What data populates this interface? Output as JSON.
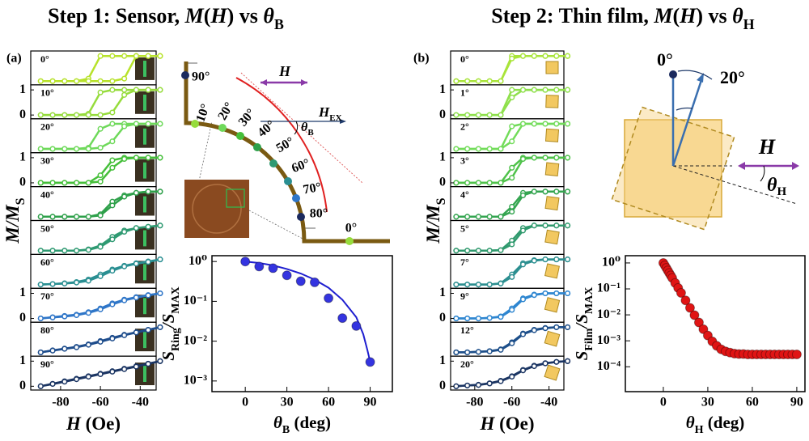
{
  "titles": [
    [
      "Step 1: Sensor, ",
      "M",
      "(",
      "H",
      ") vs ",
      "θ",
      "B"
    ],
    [
      "Step 2: Thin film, ",
      "M",
      "(",
      "H",
      ") vs ",
      "θ",
      "H"
    ]
  ],
  "diagram_a": {
    "angle_labels": [
      "90°",
      "10°",
      "20°",
      "30°",
      "40°",
      "50°",
      "60°",
      "70°",
      "80°",
      "0°"
    ],
    "field": "H",
    "field_ex": [
      "H",
      "EX"
    ],
    "theta": [
      "θ",
      "B"
    ]
  },
  "diagram_b": {
    "angle_labels": [
      "0°",
      "20°"
    ],
    "field": "H",
    "theta": [
      "θ",
      "H"
    ]
  },
  "chart_data": [
    {
      "type": "loops",
      "panel_label": "(a)",
      "ylabel": [
        "M",
        "/M",
        "S"
      ],
      "xlabel": [
        "H",
        " (Oe)"
      ],
      "x": [
        -90,
        -84,
        -78,
        -72,
        -66,
        -60,
        -54,
        -48,
        -42,
        -36,
        -30
      ],
      "xlim": [
        -95,
        -32
      ],
      "ylim": [
        -0.15,
        1.2
      ],
      "xticks": [
        -80,
        -60,
        -40
      ],
      "loops": [
        {
          "label": "0°",
          "color": "#b7e22a",
          "up": [
            0,
            0,
            0,
            0,
            0.1,
            1,
            1,
            1,
            1,
            1,
            1
          ],
          "down": [
            0,
            0,
            0,
            0,
            0,
            0,
            0,
            0.1,
            1,
            1,
            1
          ]
        },
        {
          "label": "10°",
          "color": "#96dc3c",
          "up": [
            0,
            0,
            0,
            0,
            0.05,
            0.9,
            1,
            1,
            1,
            1,
            1
          ],
          "down": [
            0,
            0,
            0,
            0,
            0,
            0,
            0.1,
            0.8,
            1,
            1,
            1
          ],
          "yticks": [
            0,
            1
          ]
        },
        {
          "label": "20°",
          "color": "#6ed95a",
          "up": [
            0,
            0,
            0,
            0,
            0.05,
            0.8,
            1,
            1,
            1,
            1,
            1
          ],
          "down": [
            0,
            0,
            0,
            0,
            0,
            0.05,
            0.3,
            0.9,
            1,
            1,
            1
          ]
        },
        {
          "label": "30°",
          "color": "#45bf3a",
          "up": [
            0,
            0,
            0,
            0,
            0,
            0.3,
            0.9,
            1,
            1,
            1,
            1
          ],
          "down": [
            0,
            0,
            0,
            0,
            0,
            0.05,
            0.6,
            0.95,
            1,
            1,
            1
          ],
          "yticks": [
            0,
            1
          ]
        },
        {
          "label": "40°",
          "color": "#2ea04a",
          "up": [
            0,
            0,
            0,
            0,
            0,
            0.1,
            0.6,
            0.85,
            0.95,
            1,
            1
          ],
          "down": [
            0,
            0,
            0,
            0,
            0,
            0.05,
            0.45,
            0.8,
            0.95,
            1,
            1
          ]
        },
        {
          "label": "50°",
          "color": "#2f9a72",
          "up": [
            0,
            0,
            0,
            0,
            0.05,
            0.2,
            0.55,
            0.8,
            0.9,
            0.95,
            1
          ],
          "down": [
            0,
            0,
            0,
            0,
            0.03,
            0.15,
            0.45,
            0.75,
            0.9,
            0.95,
            1
          ]
        },
        {
          "label": "60°",
          "color": "#2a8f92",
          "up": [
            0,
            0.02,
            0.05,
            0.1,
            0.2,
            0.4,
            0.6,
            0.75,
            0.85,
            0.92,
            1
          ],
          "down": [
            0,
            0.02,
            0.04,
            0.08,
            0.15,
            0.33,
            0.55,
            0.72,
            0.83,
            0.9,
            1
          ]
        },
        {
          "label": "70°",
          "color": "#2f76c8",
          "up": [
            0,
            0.05,
            0.1,
            0.15,
            0.25,
            0.4,
            0.6,
            0.75,
            0.85,
            0.93,
            1
          ],
          "down": [
            0,
            0.04,
            0.08,
            0.13,
            0.22,
            0.36,
            0.56,
            0.72,
            0.83,
            0.92,
            1
          ],
          "yticks": [
            0,
            1
          ]
        },
        {
          "label": "80°",
          "color": "#1e4d8c",
          "up": [
            0,
            0.08,
            0.15,
            0.22,
            0.32,
            0.45,
            0.58,
            0.7,
            0.8,
            0.9,
            1
          ],
          "down": [
            0,
            0.07,
            0.14,
            0.2,
            0.3,
            0.42,
            0.55,
            0.68,
            0.79,
            0.89,
            1
          ]
        },
        {
          "label": "90°",
          "color": "#1b3563",
          "up": [
            0,
            0.1,
            0.2,
            0.3,
            0.4,
            0.5,
            0.6,
            0.7,
            0.8,
            0.9,
            1
          ],
          "down": [
            0,
            0.09,
            0.18,
            0.28,
            0.38,
            0.48,
            0.58,
            0.68,
            0.78,
            0.89,
            1
          ],
          "yticks": [
            0,
            1
          ]
        }
      ]
    },
    {
      "type": "scatter",
      "log_y": true,
      "ylabel": [
        "S",
        "Ring",
        "/S",
        "MAX"
      ],
      "xlabel": [
        "θ",
        "B",
        " (deg)"
      ],
      "x": [
        0,
        10,
        20,
        30,
        40,
        50,
        60,
        70,
        80,
        90
      ],
      "values": [
        1.0,
        0.75,
        0.68,
        0.45,
        0.32,
        0.3,
        0.12,
        0.038,
        0.024,
        0.003
      ],
      "color": "#3434e0",
      "fit": {
        "x": [
          0,
          10,
          20,
          30,
          40,
          50,
          60,
          70,
          80,
          85,
          88,
          90
        ],
        "values": [
          1.0,
          0.92,
          0.8,
          0.65,
          0.5,
          0.35,
          0.22,
          0.11,
          0.04,
          0.015,
          0.006,
          0.003
        ],
        "color": "#1f1fd0"
      },
      "xlim": [
        -24,
        106
      ],
      "ylim": [
        0.00054,
        1.4
      ],
      "xticks": [
        0,
        30,
        60,
        90
      ],
      "yticks": [
        {
          "value": 1,
          "label": "10⁰"
        },
        {
          "value": 0.1,
          "label": "10⁻¹"
        },
        {
          "value": 0.01,
          "label": "10⁻²"
        },
        {
          "value": 0.001,
          "label": "10⁻³"
        }
      ]
    },
    {
      "type": "loops",
      "panel_label": "(b)",
      "ylabel": [
        "M",
        "/M",
        "S"
      ],
      "xlabel": [
        "H",
        " (Oe)"
      ],
      "x": [
        -90,
        -84,
        -78,
        -72,
        -66,
        -60,
        -54,
        -48,
        -42,
        -36,
        -30
      ],
      "xlim": [
        -93,
        -32
      ],
      "ylim": [
        -0.15,
        1.2
      ],
      "xticks": [
        -80,
        -60,
        -40
      ],
      "loops": [
        {
          "label": "0°",
          "color": "#a9e43a",
          "up": [
            0,
            0,
            0,
            0,
            0,
            1,
            1,
            1,
            1,
            1,
            1
          ],
          "down": [
            0,
            0,
            0,
            0,
            0,
            0.9,
            1,
            1,
            1,
            1,
            1
          ]
        },
        {
          "label": "1°",
          "color": "#8fe04c",
          "up": [
            0,
            0,
            0,
            0,
            0,
            1,
            1,
            1,
            1,
            1,
            1
          ],
          "down": [
            0,
            0,
            0,
            0,
            0,
            0.7,
            1,
            1,
            1,
            1,
            1
          ],
          "yticks": [
            0,
            1
          ]
        },
        {
          "label": "2°",
          "color": "#72dc5a",
          "up": [
            0,
            0,
            0,
            0,
            0,
            0.9,
            1,
            1,
            1,
            1,
            1
          ],
          "down": [
            0,
            0,
            0,
            0,
            0,
            0.3,
            1,
            1,
            1,
            1,
            1
          ]
        },
        {
          "label": "3°",
          "color": "#4fc24a",
          "up": [
            0,
            0,
            0,
            0,
            0,
            0.6,
            1,
            1,
            1,
            1,
            1
          ],
          "down": [
            0,
            0,
            0,
            0,
            0,
            0.2,
            0.95,
            1,
            1,
            1,
            1
          ],
          "yticks": [
            0,
            1
          ]
        },
        {
          "label": "4°",
          "color": "#34a550",
          "up": [
            0,
            0,
            0,
            0,
            0,
            0.4,
            0.95,
            1,
            1,
            1,
            1
          ],
          "down": [
            0,
            0,
            0,
            0,
            0,
            0.2,
            0.85,
            1,
            1,
            1,
            1
          ]
        },
        {
          "label": "5°",
          "color": "#309a6e",
          "up": [
            0,
            0,
            0,
            0,
            0.02,
            0.4,
            0.9,
            1,
            1,
            1,
            1
          ],
          "down": [
            0,
            0,
            0,
            0,
            0.02,
            0.25,
            0.8,
            1,
            1,
            1,
            1
          ]
        },
        {
          "label": "7°",
          "color": "#2c8f90",
          "up": [
            0,
            0,
            0,
            0,
            0.05,
            0.4,
            0.85,
            0.97,
            1,
            1,
            1
          ],
          "down": [
            0,
            0,
            0,
            0,
            0.04,
            0.3,
            0.8,
            0.95,
            1,
            1,
            1
          ]
        },
        {
          "label": "9°",
          "color": "#2e86d0",
          "up": [
            0,
            0,
            0,
            0.02,
            0.08,
            0.4,
            0.8,
            0.95,
            1,
            1,
            1
          ],
          "down": [
            0,
            0,
            0,
            0.02,
            0.06,
            0.34,
            0.76,
            0.93,
            1,
            1,
            1
          ],
          "yticks": [
            0,
            1
          ]
        },
        {
          "label": "12°",
          "color": "#1d4f8a",
          "up": [
            0,
            0,
            0.02,
            0.05,
            0.12,
            0.4,
            0.75,
            0.9,
            0.97,
            1,
            1
          ],
          "down": [
            0,
            0,
            0.02,
            0.04,
            0.1,
            0.36,
            0.72,
            0.88,
            0.96,
            1,
            1
          ]
        },
        {
          "label": "20°",
          "color": "#1b3563",
          "up": [
            0,
            0.03,
            0.06,
            0.12,
            0.22,
            0.4,
            0.65,
            0.82,
            0.92,
            0.97,
            1
          ],
          "down": [
            0,
            0.03,
            0.05,
            0.11,
            0.2,
            0.38,
            0.63,
            0.8,
            0.91,
            0.97,
            1
          ],
          "yticks": [
            0,
            1
          ]
        }
      ]
    },
    {
      "type": "scatter",
      "log_y": true,
      "ylabel": [
        "S",
        "Film",
        "/S",
        "MAX"
      ],
      "xlabel": [
        "θ",
        "H",
        " (deg)"
      ],
      "x": [
        0,
        1,
        2,
        3,
        4,
        5,
        6,
        8,
        10,
        12,
        15,
        18,
        21,
        24,
        27,
        30,
        33,
        36,
        39,
        42,
        45,
        48,
        51,
        54,
        57,
        60,
        63,
        66,
        69,
        72,
        75,
        78,
        81,
        84,
        87,
        90
      ],
      "values": [
        1.0,
        0.8,
        0.641,
        0.513,
        0.411,
        0.329,
        0.264,
        0.169,
        0.109,
        0.0698,
        0.036,
        0.0186,
        0.0097,
        0.0051,
        0.0028,
        0.0016,
        0.00095,
        0.00064,
        0.00047,
        0.00039,
        0.00035,
        0.00032,
        0.00031,
        0.00031,
        0.0003,
        0.0003,
        0.0003,
        0.0003,
        0.0003,
        0.0003,
        0.0003,
        0.0003,
        0.0003,
        0.0003,
        0.0003,
        0.0003
      ],
      "color": "#e01414",
      "xlim": [
        -25.6,
        95.5
      ],
      "ylim": [
        1.1e-05,
        1.9
      ],
      "xticks": [
        0,
        30,
        60,
        90
      ],
      "yticks": [
        {
          "value": 1,
          "label": "10⁰"
        },
        {
          "value": 0.1,
          "label": "10⁻¹"
        },
        {
          "value": 0.01,
          "label": "10⁻²"
        },
        {
          "value": 0.001,
          "label": "10⁻³"
        },
        {
          "value": 0.0001,
          "label": "10⁻⁴"
        }
      ]
    }
  ]
}
